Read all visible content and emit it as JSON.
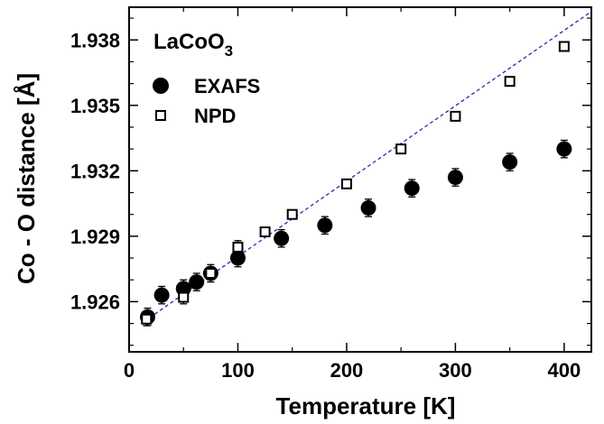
{
  "chart_data": {
    "type": "scatter",
    "title_main": "LaCoO",
    "title_sub": "3",
    "xlabel": "Temperature [K]",
    "ylabel": "Co - O distance [Å]",
    "xlim": [
      0,
      425
    ],
    "ylim": [
      1.9237,
      1.9395
    ],
    "xticks": [
      0,
      100,
      200,
      300,
      400
    ],
    "xtick_labels": [
      "0",
      "100",
      "200",
      "300",
      "400"
    ],
    "yticks": [
      1.926,
      1.929,
      1.932,
      1.935,
      1.938
    ],
    "ytick_labels": [
      "1.926",
      "1.929",
      "1.932",
      "1.935",
      "1.938"
    ],
    "grid": false,
    "legend_position": "top-left",
    "series": [
      {
        "name": "EXAFS",
        "marker": "filled-circle",
        "color": "#000000",
        "x": [
          17,
          30,
          50,
          62,
          75,
          100,
          140,
          180,
          220,
          260,
          300,
          350,
          400
        ],
        "y": [
          1.9253,
          1.9263,
          1.9266,
          1.9269,
          1.9273,
          1.928,
          1.9289,
          1.9295,
          1.9303,
          1.9312,
          1.9317,
          1.9324,
          1.933
        ],
        "yerr": [
          0.0004,
          0.0004,
          0.0004,
          0.0004,
          0.0004,
          0.0004,
          0.0004,
          0.0004,
          0.0004,
          0.0004,
          0.0004,
          0.0004,
          0.0004
        ]
      },
      {
        "name": "NPD",
        "marker": "open-square",
        "color": "#000000",
        "x": [
          16,
          50,
          75,
          100,
          125,
          150,
          200,
          250,
          300,
          350,
          400
        ],
        "y": [
          1.9252,
          1.9262,
          1.9273,
          1.9285,
          1.9292,
          1.93,
          1.9314,
          1.933,
          1.9345,
          1.9361,
          1.9377
        ],
        "yerr": [
          0.0003,
          0.0003,
          0.0003,
          0.0003,
          0.0002,
          0.0002,
          0.0002,
          0.0002,
          0.0002,
          0.0002,
          0.0002
        ]
      }
    ],
    "fit_line": {
      "style": "dashed",
      "color": "#1f2fa8",
      "x": [
        14,
        425
      ],
      "y": [
        1.9251,
        1.9393
      ]
    }
  }
}
